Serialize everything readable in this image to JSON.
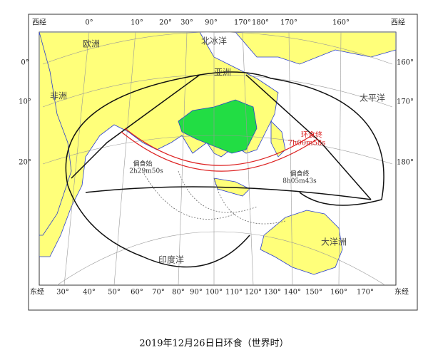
{
  "top_labels": [
    "西经",
    "0°",
    "10°",
    "20°",
    "30°",
    "90°",
    "170°",
    "180°",
    "170°",
    "160°",
    "西经"
  ],
  "bottom_labels": [
    "东经",
    "30°",
    "40°",
    "50°",
    "60°",
    "70°",
    "80°",
    "90°",
    "100°",
    "110°",
    "120°",
    "130°",
    "140°",
    "150°",
    "160°",
    "170°",
    "东经"
  ],
  "left_labels": [
    "0°",
    "10°",
    "20°"
  ],
  "right_labels": [
    "160°",
    "170°",
    "180°"
  ],
  "map_labels": [
    "欧洲",
    "亚洲",
    "非洲",
    "北冰洋",
    "太平洋",
    "印度洋",
    "大洋洲"
  ],
  "annotations": {
    "annular_end": "环食终",
    "annular_end_time": "7h00m58s",
    "partial_start": "偏食始",
    "partial_start_time": "2h29m50s",
    "partial_end": "偏食终",
    "partial_end_time": "8h05m43s"
  },
  "caption": "2019年12月26日日环食（世界时）"
}
